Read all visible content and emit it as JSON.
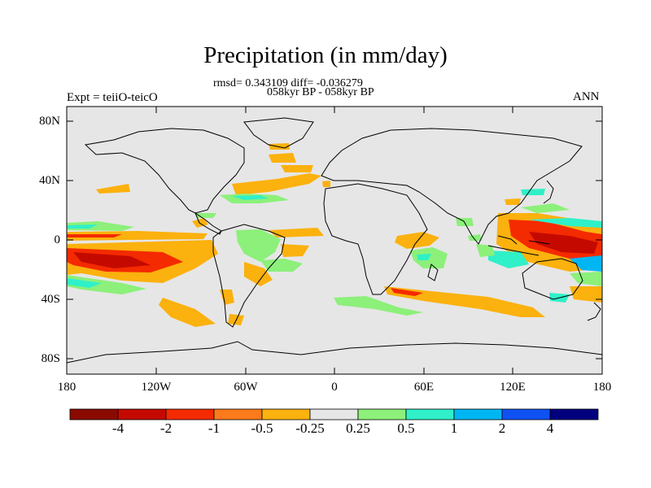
{
  "title": "Precipitation (in mm/day)",
  "subtitle_stats": "rmsd= 0.343109 diff= -0.036279",
  "subtitle_period": "058kyr BP - 058kyr BP",
  "experiment_label": "Expt = teiiO-teicO",
  "season_label": "ANN",
  "lat_ticks": [
    "80N",
    "40N",
    "0",
    "40S",
    "80S"
  ],
  "lon_ticks": [
    "180",
    "120W",
    "60W",
    "0",
    "60E",
    "120E",
    "180"
  ],
  "colorbar": {
    "labels": [
      "-4",
      "-2",
      "-1",
      "-0.5",
      "-0.25",
      "0.25",
      "0.5",
      "1",
      "2",
      "4"
    ],
    "colors": [
      "#8b0a00",
      "#c40a00",
      "#f42a00",
      "#fb7a1b",
      "#fbb10e",
      "#e6e6e6",
      "#8cf07a",
      "#2ff0c8",
      "#00b6f2",
      "#0f52f2",
      "#00007e"
    ]
  },
  "map_colors": {
    "ocean_background": "#e6e6e6",
    "coastline": "#000000"
  }
}
